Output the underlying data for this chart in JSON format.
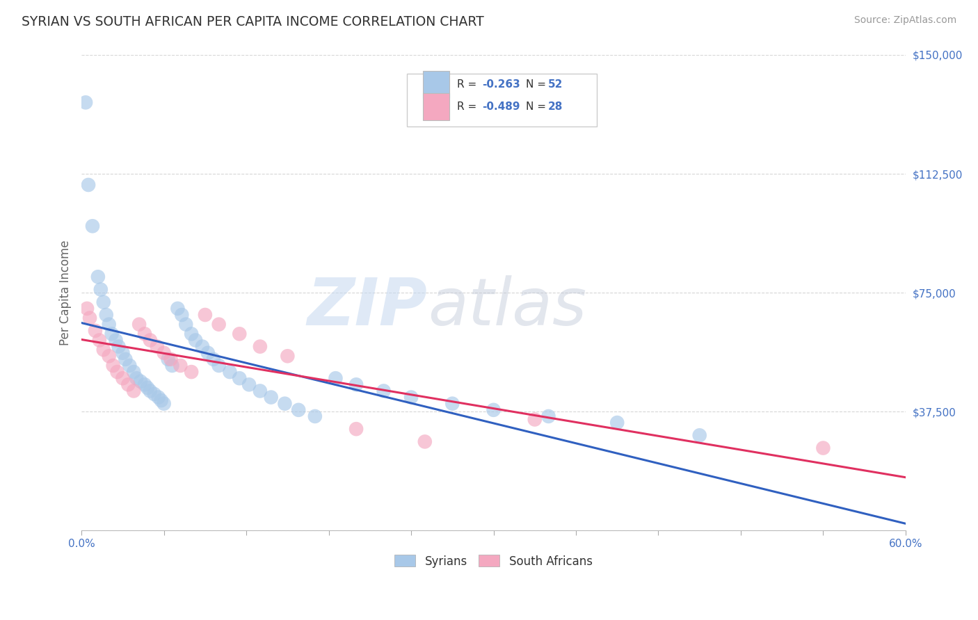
{
  "title": "SYRIAN VS SOUTH AFRICAN PER CAPITA INCOME CORRELATION CHART",
  "source": "Source: ZipAtlas.com",
  "ylabel": "Per Capita Income",
  "xlim": [
    0.0,
    0.6
  ],
  "ylim": [
    0,
    150000
  ],
  "yticks": [
    0,
    37500,
    75000,
    112500,
    150000
  ],
  "ytick_labels": [
    "",
    "$37,500",
    "$75,000",
    "$112,500",
    "$150,000"
  ],
  "xtick_positions": [
    0.0,
    0.06,
    0.12,
    0.18,
    0.24,
    0.3,
    0.36,
    0.42,
    0.48,
    0.54,
    0.6
  ],
  "blue_color": "#A8C8E8",
  "pink_color": "#F4A8C0",
  "blue_line_color": "#3060C0",
  "pink_line_color": "#E03060",
  "label1": "Syrians",
  "label2": "South Africans",
  "watermark_zip": "ZIP",
  "watermark_atlas": "atlas",
  "title_color": "#333333",
  "axis_label_color": "#666666",
  "tick_color": "#4472C4",
  "background_color": "#FFFFFF",
  "grid_color": "#CCCCCC",
  "legend_text_color": "#333333",
  "syrians_x": [
    0.003,
    0.005,
    0.008,
    0.012,
    0.014,
    0.016,
    0.018,
    0.02,
    0.022,
    0.025,
    0.027,
    0.03,
    0.032,
    0.035,
    0.038,
    0.04,
    0.043,
    0.046,
    0.048,
    0.05,
    0.053,
    0.056,
    0.058,
    0.06,
    0.063,
    0.066,
    0.07,
    0.073,
    0.076,
    0.08,
    0.083,
    0.088,
    0.092,
    0.096,
    0.1,
    0.108,
    0.115,
    0.122,
    0.13,
    0.138,
    0.148,
    0.158,
    0.17,
    0.185,
    0.2,
    0.22,
    0.24,
    0.27,
    0.3,
    0.34,
    0.39,
    0.45
  ],
  "syrians_y": [
    135000,
    109000,
    96000,
    80000,
    76000,
    72000,
    68000,
    65000,
    62000,
    60000,
    58000,
    56000,
    54000,
    52000,
    50000,
    48000,
    47000,
    46000,
    45000,
    44000,
    43000,
    42000,
    41000,
    40000,
    54000,
    52000,
    70000,
    68000,
    65000,
    62000,
    60000,
    58000,
    56000,
    54000,
    52000,
    50000,
    48000,
    46000,
    44000,
    42000,
    40000,
    38000,
    36000,
    48000,
    46000,
    44000,
    42000,
    40000,
    38000,
    36000,
    34000,
    30000
  ],
  "south_africans_x": [
    0.004,
    0.006,
    0.01,
    0.013,
    0.016,
    0.02,
    0.023,
    0.026,
    0.03,
    0.034,
    0.038,
    0.042,
    0.046,
    0.05,
    0.055,
    0.06,
    0.065,
    0.072,
    0.08,
    0.09,
    0.1,
    0.115,
    0.13,
    0.15,
    0.2,
    0.25,
    0.33,
    0.54
  ],
  "south_africans_y": [
    70000,
    67000,
    63000,
    60000,
    57000,
    55000,
    52000,
    50000,
    48000,
    46000,
    44000,
    65000,
    62000,
    60000,
    58000,
    56000,
    54000,
    52000,
    50000,
    68000,
    65000,
    62000,
    58000,
    55000,
    32000,
    28000,
    35000,
    26000
  ]
}
